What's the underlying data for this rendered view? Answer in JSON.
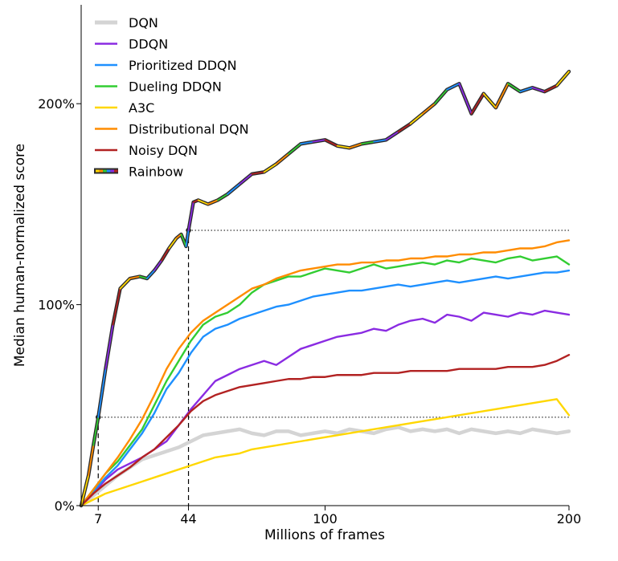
{
  "chart_data": {
    "type": "line",
    "xlabel": "Millions of frames",
    "ylabel": "Median human-normalized score",
    "xlim": [
      0,
      200
    ],
    "ylim": [
      0,
      250
    ],
    "x_ticks": [
      {
        "value": 7,
        "label": "7"
      },
      {
        "value": 44,
        "label": "44"
      },
      {
        "value": 100,
        "label": "100"
      },
      {
        "value": 200,
        "label": "200"
      }
    ],
    "y_ticks": [
      {
        "value": 0,
        "label": "0%"
      },
      {
        "value": 100,
        "label": "100%"
      },
      {
        "value": 200,
        "label": "200%"
      }
    ],
    "legend_position": "top-left",
    "reference_lines": [
      {
        "x": 7,
        "y": 44
      },
      {
        "x": 44,
        "y": 137
      }
    ],
    "series": [
      {
        "name": "DQN",
        "color": "#d4d4d4",
        "x": [
          0,
          5,
          10,
          15,
          20,
          25,
          30,
          35,
          40,
          45,
          50,
          55,
          60,
          65,
          70,
          75,
          80,
          85,
          90,
          95,
          100,
          105,
          110,
          115,
          120,
          125,
          130,
          135,
          140,
          145,
          150,
          155,
          160,
          165,
          170,
          175,
          180,
          185,
          190,
          195,
          200
        ],
        "y": [
          0,
          5,
          10,
          15,
          19,
          23,
          25,
          27,
          29,
          32,
          35,
          36,
          37,
          38,
          36,
          35,
          37,
          37,
          35,
          36,
          37,
          36,
          38,
          37,
          36,
          38,
          39,
          37,
          38,
          37,
          38,
          36,
          38,
          37,
          36,
          37,
          36,
          38,
          37,
          36,
          37
        ]
      },
      {
        "name": "DDQN",
        "color": "#8a2be2",
        "x": [
          0,
          5,
          10,
          15,
          20,
          25,
          30,
          35,
          40,
          45,
          50,
          55,
          60,
          65,
          70,
          75,
          80,
          85,
          90,
          95,
          100,
          105,
          110,
          115,
          120,
          125,
          130,
          135,
          140,
          145,
          150,
          155,
          160,
          165,
          170,
          175,
          180,
          185,
          190,
          195,
          200
        ],
        "y": [
          0,
          6,
          13,
          18,
          21,
          24,
          28,
          32,
          40,
          48,
          55,
          62,
          65,
          68,
          70,
          72,
          70,
          74,
          78,
          80,
          82,
          84,
          85,
          86,
          88,
          87,
          90,
          92,
          93,
          91,
          95,
          94,
          92,
          96,
          95,
          94,
          96,
          95,
          97,
          96,
          95
        ]
      },
      {
        "name": "Prioritized DDQN",
        "color": "#1e90ff",
        "x": [
          0,
          5,
          10,
          15,
          20,
          25,
          30,
          35,
          40,
          45,
          50,
          55,
          60,
          65,
          70,
          75,
          80,
          85,
          90,
          95,
          100,
          105,
          110,
          115,
          120,
          125,
          130,
          135,
          140,
          145,
          150,
          155,
          160,
          165,
          170,
          175,
          180,
          185,
          190,
          195,
          200
        ],
        "y": [
          0,
          7,
          14,
          20,
          28,
          36,
          46,
          58,
          66,
          76,
          84,
          88,
          90,
          93,
          95,
          97,
          99,
          100,
          102,
          104,
          105,
          106,
          107,
          107,
          108,
          109,
          110,
          109,
          110,
          111,
          112,
          111,
          112,
          113,
          114,
          113,
          114,
          115,
          116,
          116,
          117
        ]
      },
      {
        "name": "Dueling DDQN",
        "color": "#32cd32",
        "x": [
          0,
          5,
          10,
          15,
          20,
          25,
          30,
          35,
          40,
          45,
          50,
          55,
          60,
          65,
          70,
          75,
          80,
          85,
          90,
          95,
          100,
          105,
          110,
          115,
          120,
          125,
          130,
          135,
          140,
          145,
          150,
          155,
          160,
          165,
          170,
          175,
          180,
          185,
          190,
          195,
          200
        ],
        "y": [
          0,
          8,
          16,
          22,
          30,
          38,
          50,
          62,
          72,
          82,
          90,
          94,
          96,
          100,
          106,
          110,
          112,
          114,
          114,
          116,
          118,
          117,
          116,
          118,
          120,
          118,
          119,
          120,
          121,
          120,
          122,
          121,
          123,
          122,
          121,
          123,
          124,
          122,
          123,
          124,
          120
        ]
      },
      {
        "name": "A3C",
        "color": "#ffd700",
        "x": [
          0,
          5,
          10,
          15,
          20,
          25,
          30,
          35,
          40,
          45,
          50,
          55,
          60,
          65,
          70,
          75,
          80,
          85,
          90,
          95,
          100,
          105,
          110,
          115,
          120,
          125,
          130,
          135,
          140,
          145,
          150,
          155,
          160,
          165,
          170,
          175,
          180,
          185,
          190,
          195,
          200
        ],
        "y": [
          0,
          3,
          6,
          8,
          10,
          12,
          14,
          16,
          18,
          20,
          22,
          24,
          25,
          26,
          28,
          29,
          30,
          31,
          32,
          33,
          34,
          35,
          36,
          37,
          38,
          39,
          40,
          41,
          42,
          43,
          44,
          45,
          46,
          47,
          48,
          49,
          50,
          51,
          52,
          53,
          45
        ]
      },
      {
        "name": "Distributional DQN",
        "color": "#ff8c00",
        "x": [
          0,
          5,
          10,
          15,
          20,
          25,
          30,
          35,
          40,
          45,
          50,
          55,
          60,
          65,
          70,
          75,
          80,
          85,
          90,
          95,
          100,
          105,
          110,
          115,
          120,
          125,
          130,
          135,
          140,
          145,
          150,
          155,
          160,
          165,
          170,
          175,
          180,
          185,
          190,
          195,
          200
        ],
        "y": [
          0,
          8,
          16,
          24,
          33,
          43,
          55,
          68,
          78,
          86,
          92,
          96,
          100,
          104,
          108,
          110,
          113,
          115,
          117,
          118,
          119,
          120,
          120,
          121,
          121,
          122,
          122,
          123,
          123,
          124,
          124,
          125,
          125,
          126,
          126,
          127,
          128,
          128,
          129,
          131,
          132
        ]
      },
      {
        "name": "Noisy DQN",
        "color": "#b22222",
        "x": [
          0,
          5,
          10,
          15,
          20,
          25,
          30,
          35,
          40,
          45,
          50,
          55,
          60,
          65,
          70,
          75,
          80,
          85,
          90,
          95,
          100,
          105,
          110,
          115,
          120,
          125,
          130,
          135,
          140,
          145,
          150,
          155,
          160,
          165,
          170,
          175,
          180,
          185,
          190,
          195,
          200
        ],
        "y": [
          0,
          6,
          11,
          15,
          19,
          24,
          28,
          34,
          40,
          47,
          52,
          55,
          57,
          59,
          60,
          61,
          62,
          63,
          63,
          64,
          64,
          65,
          65,
          65,
          66,
          66,
          66,
          67,
          67,
          67,
          67,
          68,
          68,
          68,
          68,
          69,
          69,
          69,
          70,
          72,
          75
        ]
      },
      {
        "name": "Rainbow",
        "color": "#2c2c2c",
        "rainbow": true,
        "x": [
          0,
          3,
          5,
          7,
          10,
          13,
          16,
          20,
          24,
          27,
          30,
          33,
          36,
          39,
          41,
          43,
          44,
          46,
          48,
          52,
          56,
          60,
          65,
          70,
          75,
          80,
          85,
          90,
          95,
          100,
          105,
          110,
          115,
          120,
          125,
          130,
          135,
          140,
          145,
          150,
          155,
          160,
          165,
          170,
          175,
          180,
          185,
          190,
          195,
          200
        ],
        "y": [
          0,
          15,
          30,
          44,
          68,
          90,
          108,
          113,
          114,
          113,
          117,
          122,
          128,
          133,
          135,
          129,
          137,
          151,
          152,
          150,
          152,
          155,
          160,
          165,
          166,
          170,
          175,
          180,
          181,
          182,
          179,
          178,
          180,
          181,
          182,
          186,
          190,
          195,
          200,
          207,
          210,
          195,
          205,
          198,
          210,
          206,
          208,
          206,
          209,
          216
        ]
      }
    ]
  }
}
